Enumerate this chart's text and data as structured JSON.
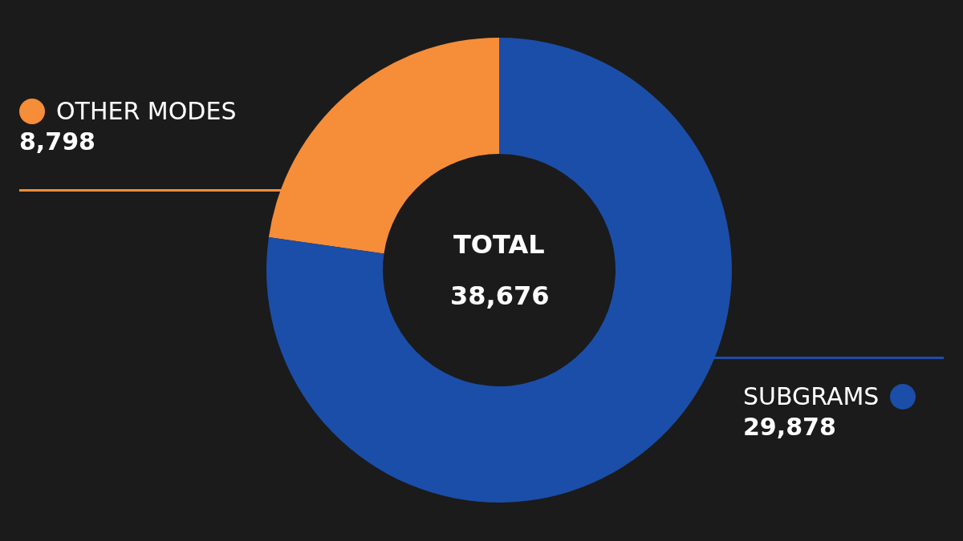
{
  "chart_data": {
    "type": "donut",
    "categories": [
      "OTHER MODES",
      "SUBGRAMS"
    ],
    "values": [
      8798,
      29878
    ],
    "colors": [
      "#f68d38",
      "#1b4ea8"
    ],
    "value_labels": [
      "8,798",
      "29,878"
    ],
    "legend": "left",
    "annotations": [
      "TOTAL",
      "38,676"
    ]
  }
}
